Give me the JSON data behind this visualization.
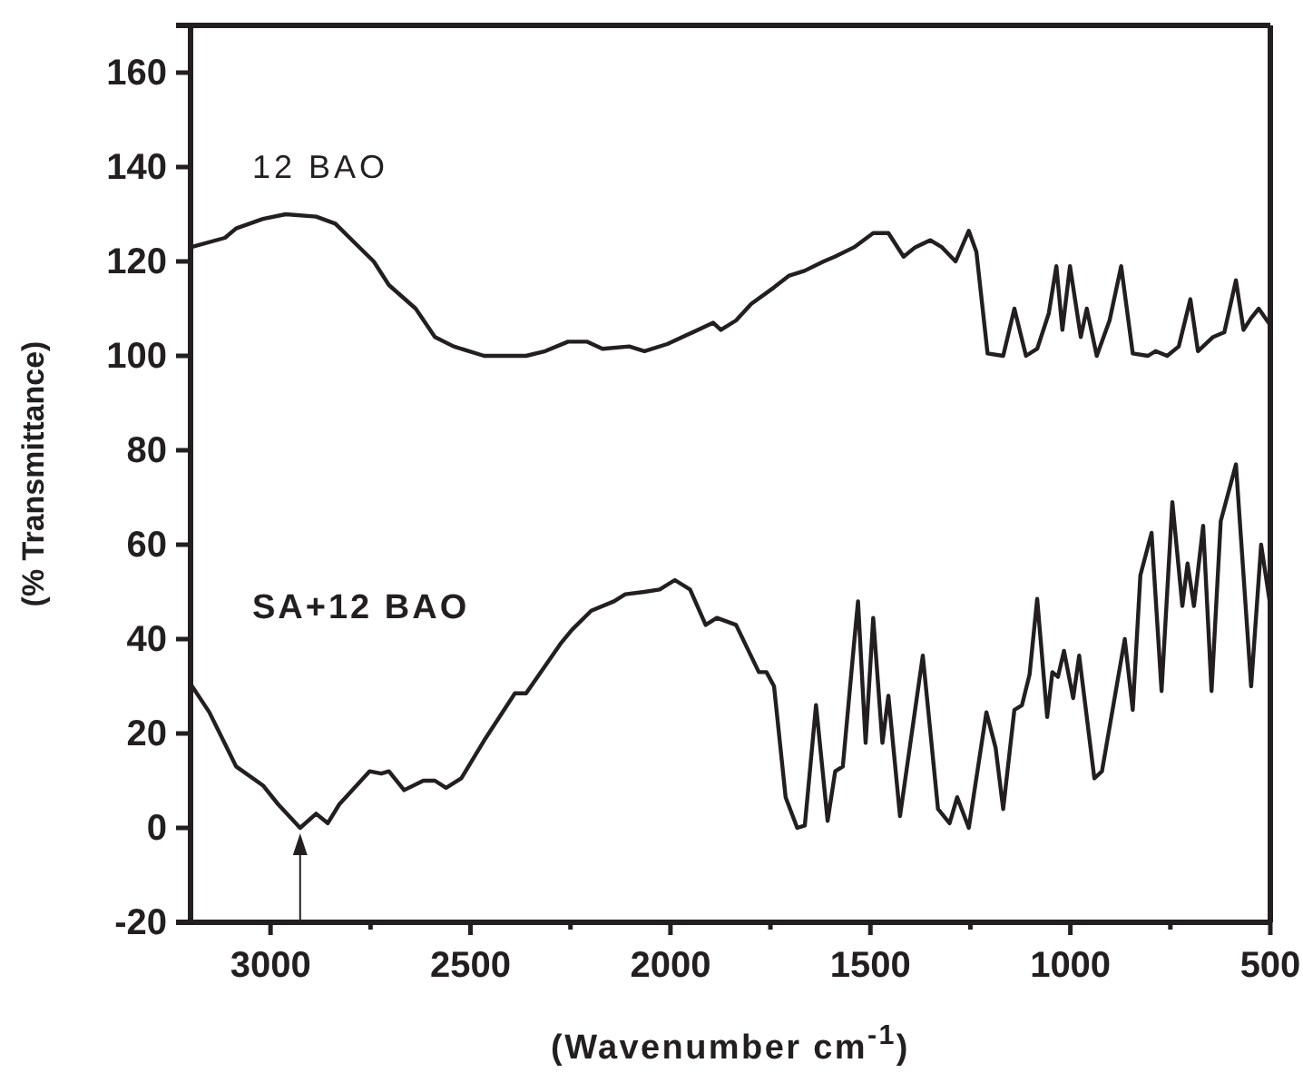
{
  "chart_data": {
    "type": "line",
    "xlabel": "(Wavenumber cm$^{-1}$)",
    "ylabel": "(% Transmittance)",
    "xlim": [
      3200,
      500
    ],
    "ylim": [
      -20,
      170
    ],
    "xticks": [
      3000,
      {
        "value": 2750,
        "label": null
      },
      2500,
      {
        "value": 2250,
        "label": null
      },
      2000,
      {
        "value": 1750,
        "label": null
      },
      1500,
      {
        "value": 1250,
        "label": null
      },
      1000,
      {
        "value": 750,
        "label": null
      },
      500
    ],
    "yticks": [
      -20,
      0,
      20,
      40,
      60,
      80,
      100,
      120,
      140,
      160
    ],
    "grid": false,
    "legend": false,
    "marker": "none",
    "line_style": "solid",
    "series": [
      {
        "name": "12 BAO",
        "color": "#231f20",
        "x": [
          3200,
          3114,
          3086,
          3019,
          2962,
          2886,
          2838,
          2790,
          2742,
          2704,
          2637,
          2589,
          2542,
          2466,
          2408,
          2361,
          2313,
          2256,
          2208,
          2170,
          2103,
          2065,
          2008,
          1893,
          1874,
          1836,
          1798,
          1741,
          1703,
          1665,
          1617,
          1589,
          1541,
          1493,
          1455,
          1417,
          1388,
          1350,
          1321,
          1287,
          1254,
          1235,
          1207,
          1168,
          1140,
          1111,
          1083,
          1054,
          1035,
          1020,
          1001,
          974,
          959,
          934,
          902,
          873,
          844,
          806,
          787,
          758,
          729,
          700,
          681,
          643,
          615,
          586,
          567,
          548,
          529,
          500
        ],
        "values": [
          123,
          125,
          127,
          129,
          130,
          129.5,
          128,
          124,
          120,
          115,
          110,
          104,
          102,
          100,
          100,
          100,
          101,
          103,
          103,
          101.5,
          102,
          101,
          102.5,
          107,
          105.5,
          107.5,
          111,
          114.5,
          117,
          118,
          120,
          121,
          123,
          126,
          126,
          121,
          123,
          124.5,
          123,
          120,
          126.5,
          122,
          100.5,
          100,
          110,
          100,
          101.5,
          109,
          119,
          105.5,
          119,
          104,
          110,
          100,
          107.5,
          119,
          100.5,
          100,
          101,
          100,
          102,
          112,
          101,
          104,
          105,
          116,
          105.5,
          108,
          110,
          106.5
        ]
      },
      {
        "name": "SA+12 BAO",
        "color": "#231f20",
        "x": [
          3200,
          3153,
          3086,
          3019,
          2981,
          2926,
          2886,
          2857,
          2828,
          2752,
          2723,
          2704,
          2666,
          2618,
          2589,
          2561,
          2523,
          2466,
          2389,
          2361,
          2275,
          2246,
          2198,
          2141,
          2113,
          2065,
          2027,
          1989,
          1951,
          1912,
          1884,
          1836,
          1779,
          1760,
          1741,
          1712,
          1683,
          1664,
          1636,
          1607,
          1588,
          1569,
          1541,
          1531,
          1512,
          1493,
          1470,
          1455,
          1426,
          1369,
          1331,
          1302,
          1283,
          1254,
          1210,
          1187,
          1168,
          1140,
          1121,
          1102,
          1083,
          1058,
          1045,
          1031,
          1016,
          993,
          978,
          940,
          921,
          864,
          844,
          825,
          797,
          772,
          745,
          720,
          707,
          691,
          668,
          647,
          624,
          586,
          548,
          523,
          500
        ],
        "values": [
          30.5,
          24.5,
          13,
          9,
          5,
          0,
          3,
          1,
          5,
          12,
          11.5,
          12,
          8,
          10,
          10,
          8.5,
          10.5,
          18.5,
          28.5,
          28.5,
          39,
          42,
          46,
          48,
          49.5,
          50,
          50.5,
          52.5,
          50.5,
          43,
          44.5,
          43,
          33,
          33,
          30,
          6.5,
          0,
          0.5,
          26,
          1.5,
          12,
          13,
          39,
          48,
          18,
          44.5,
          18,
          28,
          2.5,
          36.5,
          4,
          1,
          6.5,
          0,
          24.5,
          17,
          4,
          25,
          26,
          32.5,
          48.5,
          23.5,
          33,
          32,
          37.5,
          27.5,
          36.5,
          10.5,
          12,
          40,
          25,
          53.5,
          62.5,
          29,
          69,
          47,
          56,
          47,
          64,
          29,
          65,
          77,
          30,
          60,
          47
        ]
      }
    ]
  }
}
